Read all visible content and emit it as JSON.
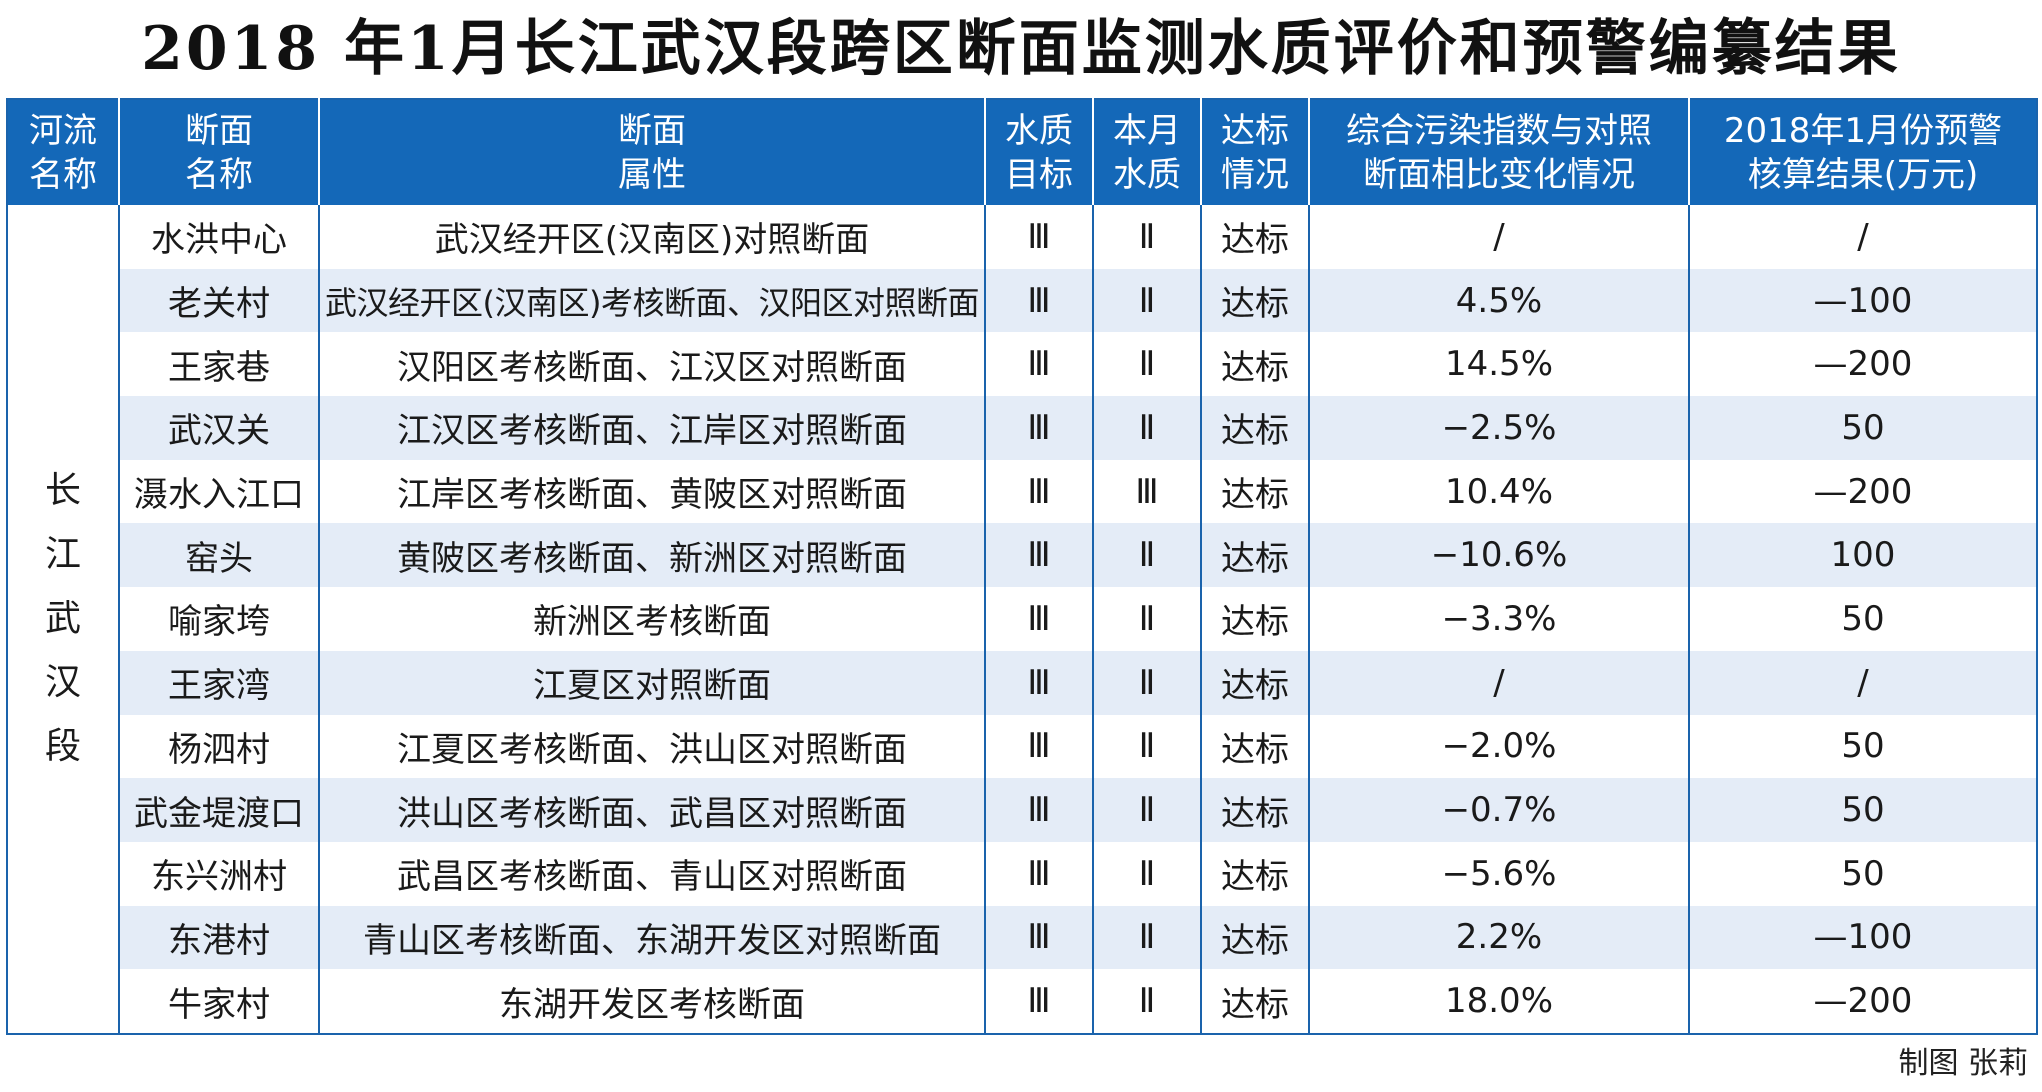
{
  "title": "2018 年1月长江武汉段跨区断面监测水质评价和预警编纂结果",
  "headers": [
    [
      "河流",
      "名称"
    ],
    [
      "断面",
      "名称"
    ],
    [
      "断面",
      "属性"
    ],
    [
      "水质",
      "目标"
    ],
    [
      "本月",
      "水质"
    ],
    [
      "达标",
      "情况"
    ],
    [
      "综合污染指数与对照",
      "断面相比变化情况"
    ],
    [
      "2018年1月份预警",
      "核算结果(万元)"
    ]
  ],
  "river": [
    "长",
    "江",
    "武",
    "汉",
    "段"
  ],
  "rows": [
    {
      "name": "水洪中心",
      "attr": "武汉经开区(汉南区)对照断面",
      "target": "Ⅲ",
      "quality": "Ⅱ",
      "status": "达标",
      "change": "/",
      "result": "/"
    },
    {
      "name": "老关村",
      "attr": "武汉经开区(汉南区)考核断面、汉阳区对照断面",
      "target": "Ⅲ",
      "quality": "Ⅱ",
      "status": "达标",
      "change": "4.5%",
      "result": "—100"
    },
    {
      "name": "王家巷",
      "attr": "汉阳区考核断面、江汉区对照断面",
      "target": "Ⅲ",
      "quality": "Ⅱ",
      "status": "达标",
      "change": "14.5%",
      "result": "—200"
    },
    {
      "name": "武汉关",
      "attr": "江汉区考核断面、江岸区对照断面",
      "target": "Ⅲ",
      "quality": "Ⅱ",
      "status": "达标",
      "change": "−2.5%",
      "result": "50"
    },
    {
      "name": "滠水入江口",
      "attr": "江岸区考核断面、黄陂区对照断面",
      "target": "Ⅲ",
      "quality": "Ⅲ",
      "status": "达标",
      "change": "10.4%",
      "result": "—200"
    },
    {
      "name": "窑头",
      "attr": "黄陂区考核断面、新洲区对照断面",
      "target": "Ⅲ",
      "quality": "Ⅱ",
      "status": "达标",
      "change": "−10.6%",
      "result": "100"
    },
    {
      "name": "喻家垮",
      "attr": "新洲区考核断面",
      "target": "Ⅲ",
      "quality": "Ⅱ",
      "status": "达标",
      "change": "−3.3%",
      "result": "50"
    },
    {
      "name": "王家湾",
      "attr": "江夏区对照断面",
      "target": "Ⅲ",
      "quality": "Ⅱ",
      "status": "达标",
      "change": "/",
      "result": "/"
    },
    {
      "name": "杨泗村",
      "attr": "江夏区考核断面、洪山区对照断面",
      "target": "Ⅲ",
      "quality": "Ⅱ",
      "status": "达标",
      "change": "−2.0%",
      "result": "50"
    },
    {
      "name": "武金堤渡口",
      "attr": "洪山区考核断面、武昌区对照断面",
      "target": "Ⅲ",
      "quality": "Ⅱ",
      "status": "达标",
      "change": "−0.7%",
      "result": "50"
    },
    {
      "name": "东兴洲村",
      "attr": "武昌区考核断面、青山区对照断面",
      "target": "Ⅲ",
      "quality": "Ⅱ",
      "status": "达标",
      "change": "−5.6%",
      "result": "50"
    },
    {
      "name": "东港村",
      "attr": "青山区考核断面、东湖开发区对照断面",
      "target": "Ⅲ",
      "quality": "Ⅱ",
      "status": "达标",
      "change": "2.2%",
      "result": "—100"
    },
    {
      "name": "牛家村",
      "attr": "东湖开发区考核断面",
      "target": "Ⅲ",
      "quality": "Ⅱ",
      "status": "达标",
      "change": "18.0%",
      "result": "—200"
    }
  ],
  "credit": "制图 张莉",
  "colors": {
    "header_bg": "#1468b8",
    "row_alt": "#e4ecf7",
    "border": "#1a63ac"
  }
}
